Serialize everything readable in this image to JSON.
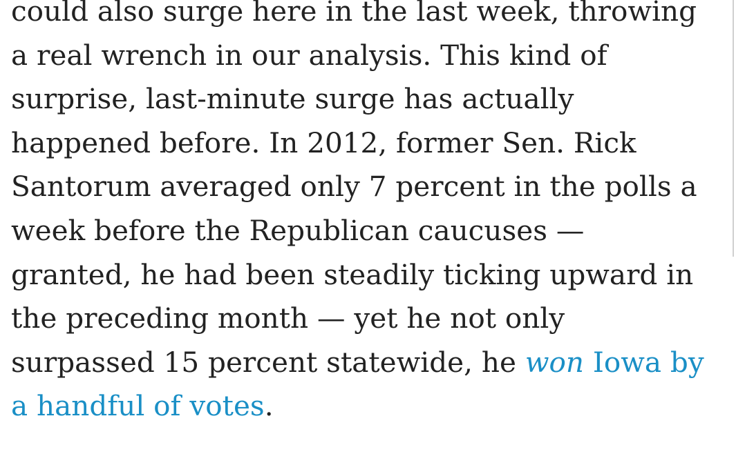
{
  "article": {
    "lines": [
      "could also surge here in the last week, throwing",
      "a real wrench in our analysis. This kind of",
      "surprise, last-minute surge has actually",
      "happened before. In 2012, former Sen. Rick",
      "Santorum averaged only 7 percent in the polls a",
      "week before the Republican caucuses —",
      "granted, he had been steadily ticking upward in",
      "the preceding month — yet he not only"
    ],
    "line9_text": "surpassed 15 percent statewide, he ",
    "link_won": "won",
    "link_iowa_by": " Iowa by",
    "link_handful": "a handful of votes",
    "end_period": "."
  }
}
